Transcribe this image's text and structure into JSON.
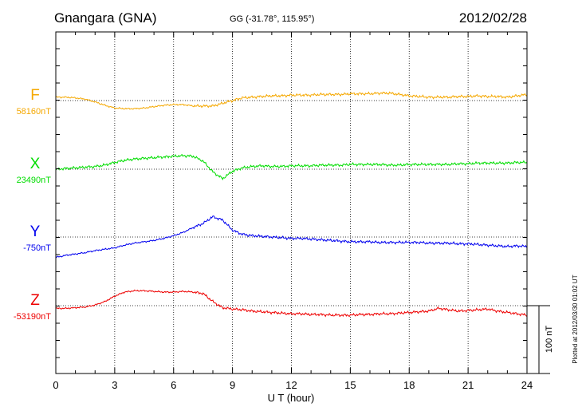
{
  "chart_data": {
    "type": "line",
    "station": "Gnangara (GNA)",
    "coords": "GG (-31.78°, 115.95°)",
    "date": "2012/02/28",
    "xlabel": "U T (hour)",
    "xlim": [
      0,
      24
    ],
    "x_ticks": [
      "0",
      "3",
      "6",
      "9",
      "12",
      "15",
      "18",
      "21",
      "24"
    ],
    "grid": true,
    "scale_label": "100 nT",
    "plotted_note": "Plotted at 2012/03/30 01:02 UT",
    "x": [
      0,
      0.5,
      1,
      1.5,
      2,
      2.5,
      3,
      3.5,
      4,
      4.5,
      5,
      5.5,
      6,
      6.5,
      7,
      7.5,
      8,
      8.5,
      9,
      9.5,
      10,
      10.5,
      11,
      11.5,
      12,
      12.5,
      13,
      13.5,
      14,
      14.5,
      15,
      15.5,
      16,
      16.5,
      17,
      17.5,
      18,
      18.5,
      19,
      19.5,
      20,
      20.5,
      21,
      21.5,
      22,
      22.5,
      23,
      23.5,
      24
    ],
    "series": [
      {
        "name": "F",
        "baseline_label": "58160nT",
        "color": "#f5a800",
        "values": [
          5,
          5,
          4,
          2,
          -2,
          -7,
          -11,
          -12,
          -12,
          -11,
          -9,
          -7,
          -6,
          -6,
          -8,
          -8,
          -8,
          -4,
          0,
          4,
          5,
          6,
          7,
          7,
          8,
          8,
          8,
          9,
          9,
          9,
          10,
          10,
          10,
          11,
          11,
          9,
          7,
          6,
          5,
          5,
          5,
          6,
          6,
          7,
          6,
          6,
          5,
          7,
          9
        ]
      },
      {
        "name": "X",
        "baseline_label": "23490nT",
        "color": "#00dd00",
        "values": [
          0,
          1,
          2,
          3,
          4,
          6,
          10,
          13,
          15,
          16,
          17,
          18,
          19,
          20,
          19,
          12,
          -4,
          -14,
          -3,
          2,
          4,
          5,
          4,
          4,
          5,
          5,
          5,
          6,
          6,
          6,
          7,
          7,
          7,
          7,
          6,
          6,
          7,
          7,
          7,
          7,
          7,
          8,
          8,
          9,
          9,
          9,
          9,
          10,
          10
        ]
      },
      {
        "name": "Y",
        "baseline_label": "-750nT",
        "color": "#0000ee",
        "values": [
          -30,
          -27,
          -25,
          -23,
          -20,
          -18,
          -16,
          -12,
          -9,
          -7,
          -5,
          -2,
          2,
          7,
          14,
          20,
          30,
          25,
          10,
          4,
          2,
          1,
          0,
          -1,
          -2,
          -2,
          -3,
          -4,
          -5,
          -6,
          -7,
          -7,
          -7,
          -8,
          -8,
          -8,
          -8,
          -8,
          -9,
          -9,
          -9,
          -10,
          -10,
          -11,
          -12,
          -13,
          -14,
          -13,
          -14
        ]
      },
      {
        "name": "Z",
        "baseline_label": "-53190nT",
        "color": "#ee0000",
        "values": [
          -4,
          -4,
          -3,
          -2,
          1,
          6,
          14,
          20,
          22,
          22,
          21,
          20,
          20,
          21,
          20,
          18,
          6,
          -3,
          -5,
          -6,
          -8,
          -9,
          -10,
          -11,
          -12,
          -12,
          -13,
          -13,
          -14,
          -14,
          -14,
          -13,
          -13,
          -12,
          -12,
          -11,
          -10,
          -9,
          -8,
          -4,
          -6,
          -8,
          -7,
          -6,
          -5,
          -8,
          -10,
          -12,
          -14
        ]
      }
    ]
  }
}
